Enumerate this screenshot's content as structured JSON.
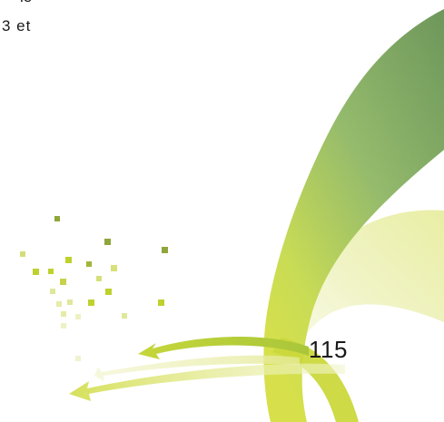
{
  "document": {
    "text_line_1": "le",
    "text_line_2": "3  et",
    "page_number": "115"
  },
  "colors": {
    "green_dark": "#6f9a5c",
    "green_mid": "#9cbf6a",
    "yellow_green": "#c8d84a",
    "pale_yellow": "#eef2b8",
    "square_green": "#8fa63a",
    "square_lime": "#bfd12e"
  },
  "decoration": {
    "swoosh_icon": "swoosh-art",
    "arrows_icon": "curved-arrows-art",
    "squares_icon": "pixel-squares-art"
  }
}
